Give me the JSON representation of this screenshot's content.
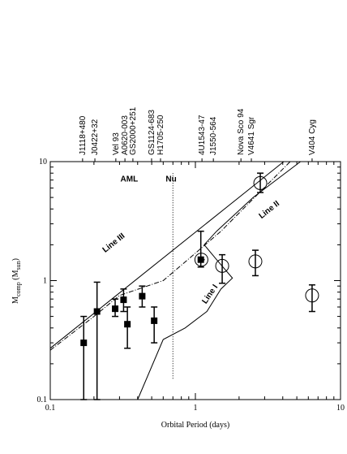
{
  "chart_data": {
    "type": "scatter",
    "xlabel": "Orbital Period (days)",
    "ylabel": {
      "main": "M",
      "sub": "comp",
      "unit": " (M",
      "unit_sub": "sun",
      "close": ")"
    },
    "log_x": true,
    "log_y": true,
    "xlim": [
      0.1,
      10
    ],
    "ylim": [
      0.1,
      10
    ],
    "xticks": [
      0.1,
      1,
      10
    ],
    "yticks": [
      0.1,
      1,
      10
    ],
    "series": [
      {
        "name": "squares",
        "marker": "square",
        "color": "#000",
        "x": [
          0.17,
          0.21,
          0.28,
          0.32,
          0.34,
          0.43,
          0.52,
          1.09
        ],
        "y": [
          0.3,
          0.55,
          0.58,
          0.69,
          0.43,
          0.74,
          0.46,
          1.5
        ],
        "ylow": [
          0.1,
          0.1,
          0.5,
          0.55,
          0.27,
          0.6,
          0.3,
          1.3
        ],
        "yhigh": [
          0.5,
          0.97,
          0.7,
          0.85,
          0.6,
          0.9,
          0.6,
          2.6
        ]
      },
      {
        "name": "circles",
        "marker": "circle",
        "color": "#000",
        "x": [
          1.1,
          1.53,
          2.59,
          2.8,
          6.37
        ],
        "y": [
          1.5,
          1.33,
          1.45,
          6.6,
          0.75
        ],
        "ylow": [
          1.5,
          0.95,
          1.1,
          5.5,
          0.55
        ],
        "yhigh": [
          1.5,
          1.65,
          1.8,
          8,
          0.92
        ]
      }
    ],
    "lines": [
      {
        "name": "Line III",
        "style": "solid",
        "x": [
          0.1,
          4.06
        ],
        "y": [
          0.27,
          10
        ],
        "label_x": 0.28,
        "label_y": 2.0
      },
      {
        "name": "Line II",
        "style": "dashdot",
        "x": [
          0.1,
          0.2,
          0.3,
          0.6,
          1.0,
          1.5,
          4.5
        ],
        "y": [
          0.26,
          0.5,
          0.75,
          1.0,
          1.7,
          2.6,
          10
        ],
        "label_x": 3.3,
        "label_y": 3.8
      },
      {
        "name": "Line I",
        "style": "solid",
        "x": [
          0.4,
          0.6,
          0.85,
          1.2,
          1.5,
          1.8,
          1.4,
          1.15,
          1.4,
          2.5,
          5.3
        ],
        "y": [
          0.1,
          0.32,
          0.4,
          0.55,
          0.85,
          1.05,
          1.5,
          2.0,
          2.6,
          5,
          10
        ],
        "label_x": 1.3,
        "label_y": 0.75
      }
    ],
    "vline": {
      "x": 0.7,
      "y": [
        0.15,
        8
      ]
    },
    "regions": [
      {
        "text": "AML",
        "x": 0.35,
        "y": 6.8
      },
      {
        "text": "Nu",
        "x": 0.68,
        "y": 6.8
      }
    ],
    "sources": [
      {
        "label": "J1118+480",
        "x": 0.167
      },
      {
        "label": "J0422+32",
        "x": 0.203
      },
      {
        "label": "Vel 93",
        "x": 0.283
      },
      {
        "label": "A0620-003",
        "x": 0.327
      },
      {
        "label": "GS2000+251",
        "x": 0.371
      },
      {
        "label": "GS1124-683",
        "x": 0.499
      },
      {
        "label": "H1705-250",
        "x": 0.575
      },
      {
        "label": "4U1543-47",
        "x": 1.11
      },
      {
        "label": "J1550-564",
        "x": 1.33
      },
      {
        "label": "Nova Sco 94",
        "x": 2.06
      },
      {
        "label": "V4641 Sgr",
        "x": 2.43
      },
      {
        "label": "V404 Cyg",
        "x": 6.37
      }
    ]
  }
}
